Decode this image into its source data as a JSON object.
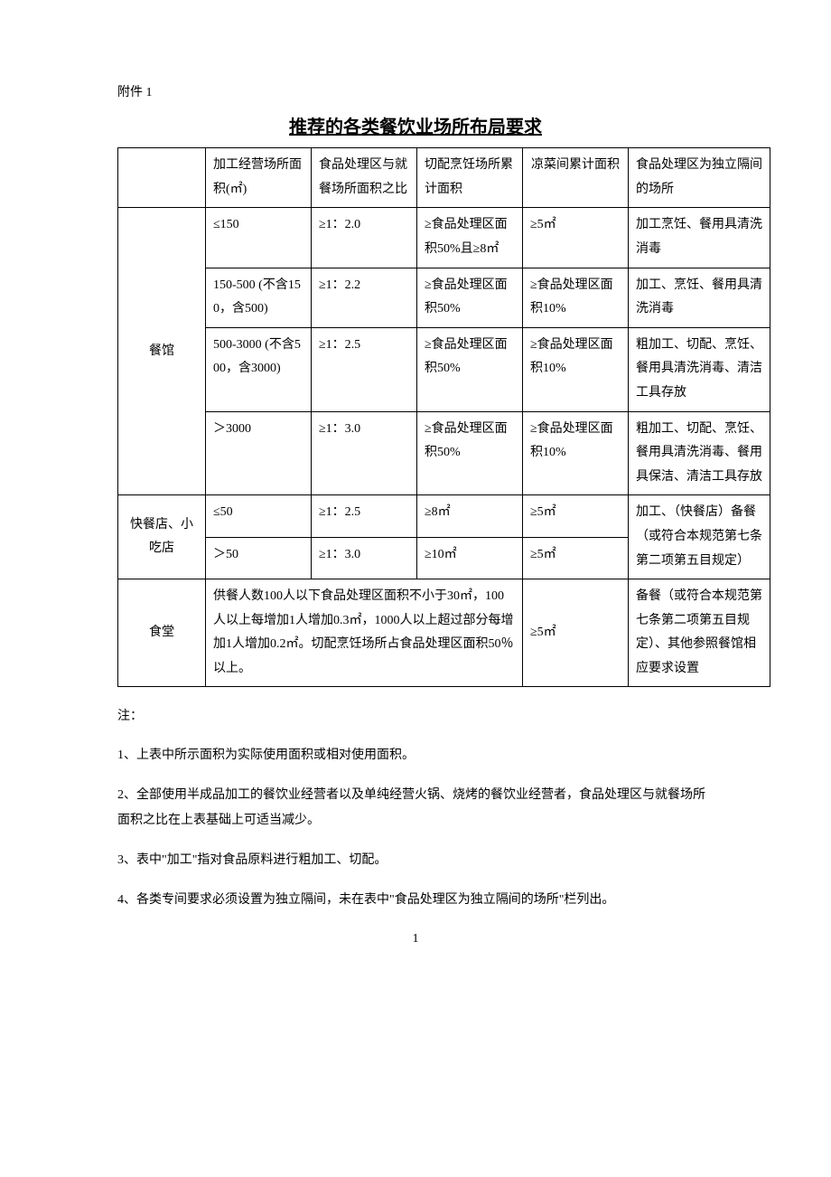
{
  "attachment": "附件 1",
  "title": "推荐的各类餐饮业场所布局要求",
  "headers": {
    "type": "",
    "area": "加工经营场所面积(㎡)",
    "ratio": "食品处理区与就餐场所面积之比",
    "cutcook": "切配烹饪场所累计面积",
    "cold": "凉菜间累计面积",
    "indep": "食品处理区为独立隔间的场所"
  },
  "restaurant": {
    "label": "餐馆",
    "rows": [
      {
        "area": "≤150",
        "ratio": "≥1：2.0",
        "cutcook": "≥食品处理区面积50%且≥8㎡",
        "cold": "≥5㎡",
        "indep": "加工烹饪、餐用具清洗消毒"
      },
      {
        "area": "150-500 (不含150，含500)",
        "ratio": "≥1：2.2",
        "cutcook": "≥食品处理区面积50%",
        "cold": "≥食品处理区面积10%",
        "indep": "加工、烹饪、餐用具清洗消毒"
      },
      {
        "area": "500-3000 (不含500，含3000)",
        "ratio": "≥1：2.5",
        "cutcook": "≥食品处理区面积50%",
        "cold": "≥食品处理区面积10%",
        "indep": "粗加工、切配、烹饪、餐用具清洗消毒、清洁工具存放"
      },
      {
        "area": "＞3000",
        "ratio": "≥1：3.0",
        "cutcook": "≥食品处理区面积50%",
        "cold": "≥食品处理区面积10%",
        "indep": "粗加工、切配、烹饪、餐用具清洗消毒、餐用具保洁、清洁工具存放"
      }
    ]
  },
  "fastfood": {
    "label": "快餐店、小吃店",
    "indep": "加工、（快餐店）备餐（或符合本规范第七条第二项第五目规定）",
    "rows": [
      {
        "area": "≤50",
        "ratio": "≥1：2.5",
        "cutcook": "≥8㎡",
        "cold": "≥5㎡"
      },
      {
        "area": "＞50",
        "ratio": "≥1：3.0",
        "cutcook": "≥10㎡",
        "cold": "≥5㎡"
      }
    ]
  },
  "canteen": {
    "label": "食堂",
    "merged": "供餐人数100人以下食品处理区面积不小于30㎡，100人以上每增加1人增加0.3㎡，1000人以上超过部分每增加1人增加0.2㎡。切配烹饪场所占食品处理区面积50％以上。",
    "cold": "≥5㎡",
    "indep": "备餐（或符合本规范第七条第二项第五目规定）、其他参照餐馆相应要求设置"
  },
  "notes": {
    "label": "注：",
    "items": [
      "1、上表中所示面积为实际使用面积或相对使用面积。",
      "2、全部使用半成品加工的餐饮业经营者以及单纯经营火锅、烧烤的餐饮业经营者，食品处理区与就餐场所面积之比在上表基础上可适当减少。",
      "3、表中\"加工\"指对食品原料进行粗加工、切配。",
      "4、各类专间要求必须设置为独立隔间，未在表中\"食品处理区为独立隔间的场所\"栏列出。"
    ]
  },
  "page_number": "1"
}
